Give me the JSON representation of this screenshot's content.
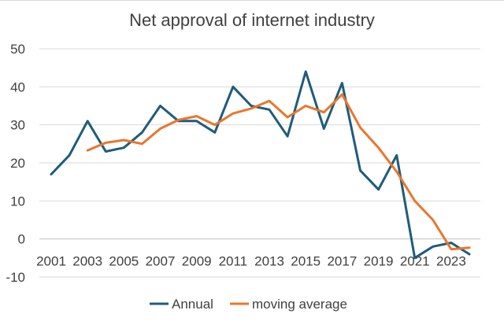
{
  "chart_data": {
    "type": "line",
    "title": "Net approval of internet industry",
    "xlabel": "",
    "ylabel": "",
    "ylim": [
      -10,
      50
    ],
    "yticks": [
      -10,
      0,
      10,
      20,
      30,
      40,
      50
    ],
    "xticks": [
      "2001",
      "2003",
      "2005",
      "2007",
      "2009",
      "2011",
      "2013",
      "2015",
      "2017",
      "2019",
      "2021",
      "2023"
    ],
    "x": [
      2001,
      2002,
      2003,
      2004,
      2005,
      2006,
      2007,
      2008,
      2009,
      2010,
      2011,
      2012,
      2013,
      2014,
      2015,
      2016,
      2017,
      2018,
      2019,
      2020,
      2021,
      2022,
      2023,
      2024
    ],
    "grid": true,
    "legend": "bottom",
    "series": [
      {
        "name": "Annual",
        "color": "#1f5c7a",
        "values": [
          17,
          22,
          31,
          23,
          24,
          28,
          35,
          31,
          31,
          28,
          40,
          35,
          34,
          27,
          44,
          29,
          41,
          18,
          13,
          22,
          -5,
          -2,
          -1,
          -4
        ]
      },
      {
        "name": "moving average",
        "color": "#e8772e",
        "values": [
          null,
          null,
          23.3,
          25.3,
          26,
          25,
          29,
          31.3,
          32.3,
          30,
          33,
          34.3,
          36.3,
          32,
          35,
          33.3,
          38,
          29.3,
          24,
          17.7,
          10,
          5,
          -2.7,
          -2.3
        ]
      }
    ]
  }
}
